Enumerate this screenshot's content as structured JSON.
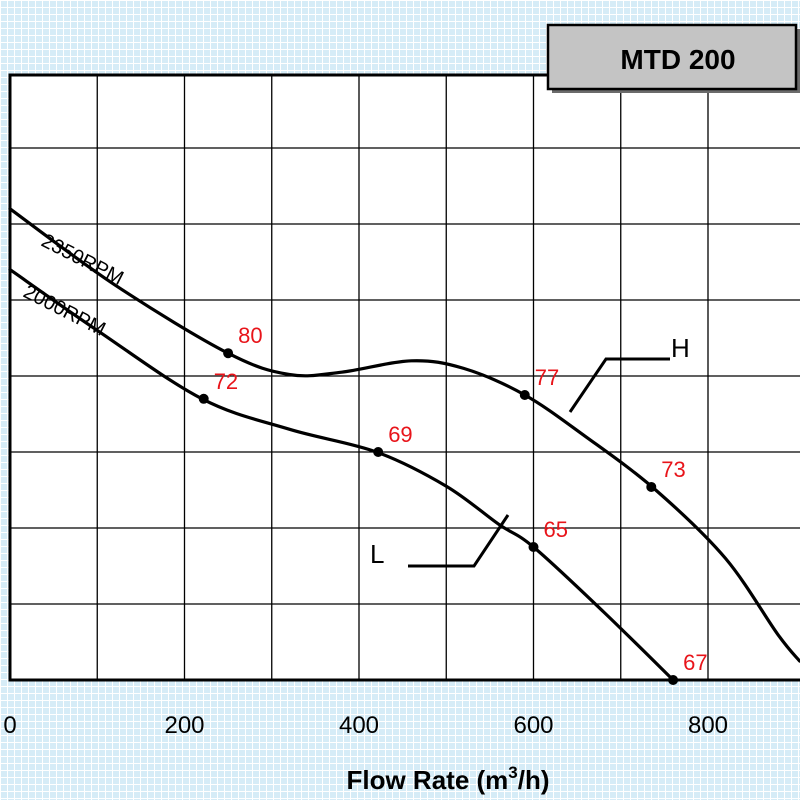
{
  "chart_data": {
    "type": "line",
    "title": "MTD 200",
    "xlabel_main": "Flow Rate (m",
    "xlabel_sup": "3",
    "xlabel_end": "/h)",
    "xlim": [
      0,
      900
    ],
    "x_ticks": [
      {
        "value": 0,
        "label": "0"
      },
      {
        "value": 200,
        "label": "200"
      },
      {
        "value": 400,
        "label": "400"
      },
      {
        "value": 600,
        "label": "600"
      },
      {
        "value": 800,
        "label": "800"
      }
    ],
    "series": [
      {
        "name": "2350RPM",
        "tag": "H",
        "x": [
          0,
          120,
          250,
          320,
          380,
          460,
          520,
          590,
          660,
          740,
          820,
          880,
          905
        ],
        "y": [
          6.2,
          5.2,
          4.3,
          4.02,
          4.05,
          4.2,
          4.1,
          3.75,
          3.2,
          2.5,
          1.6,
          0.6,
          0.25
        ],
        "markers": [
          {
            "x": 250,
            "y": 4.3,
            "label": "80"
          },
          {
            "x": 590,
            "y": 3.75,
            "label": "77"
          },
          {
            "x": 735,
            "y": 2.54,
            "label": "73"
          }
        ]
      },
      {
        "name": "2000RPM",
        "tag": "L",
        "x": [
          0,
          100,
          220,
          320,
          420,
          500,
          560,
          600,
          680,
          760
        ],
        "y": [
          5.4,
          4.6,
          3.7,
          3.3,
          3.0,
          2.55,
          2.05,
          1.75,
          0.9,
          0.0
        ],
        "markers": [
          {
            "x": 222,
            "y": 3.7,
            "label": "72"
          },
          {
            "x": 422,
            "y": 3.0,
            "label": "69"
          },
          {
            "x": 600,
            "y": 1.75,
            "label": "65"
          },
          {
            "x": 760,
            "y": 0.0,
            "label": "67"
          }
        ]
      }
    ]
  }
}
